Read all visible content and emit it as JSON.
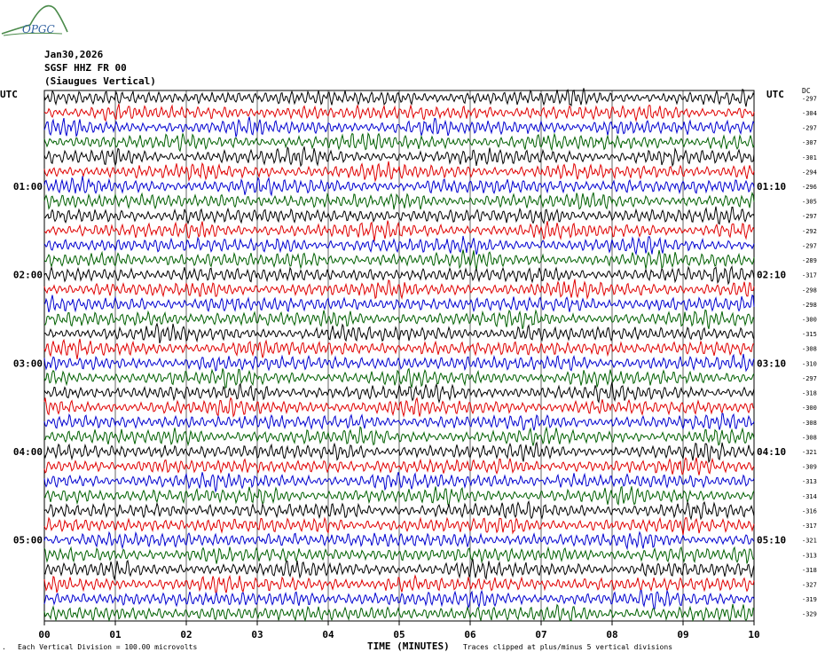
{
  "header": {
    "logo_text": "OPGC",
    "date": "Jan30,2026",
    "station": "SGSF HHZ FR 00",
    "location": "(Siaugues Vertical)",
    "utc_left": "UTC",
    "utc_right": "UTC",
    "dc_label": "DC"
  },
  "footer": {
    "division_note": "Each Vertical Division =  100.00 microvolts",
    "clip_note": "Traces clipped at plus/minus 5 vertical divisions",
    "axis_title": "TIME (MINUTES)"
  },
  "colors": {
    "trace_cycle": [
      "#000000",
      "#e00000",
      "#0000d0",
      "#006000"
    ],
    "grid": "#000000",
    "logo": "#4a8a4a"
  },
  "chart_data": {
    "type": "line",
    "title": "SGSF HHZ FR 00 (Siaugues Vertical)",
    "xlabel": "TIME (MINUTES)",
    "ylabel": "UTC",
    "x_ticks": [
      "00",
      "01",
      "02",
      "03",
      "04",
      "05",
      "06",
      "07",
      "08",
      "09",
      "10"
    ],
    "xlim": [
      0,
      10
    ],
    "minutes_per_row": 10,
    "left_time_labels": [
      {
        "row": 6,
        "label": "01:00"
      },
      {
        "row": 12,
        "label": "02:00"
      },
      {
        "row": 18,
        "label": "03:00"
      },
      {
        "row": 24,
        "label": "04:00"
      },
      {
        "row": 30,
        "label": "05:00"
      }
    ],
    "right_time_labels": [
      {
        "row": 6,
        "label": "01:10"
      },
      {
        "row": 12,
        "label": "02:10"
      },
      {
        "row": 18,
        "label": "03:10"
      },
      {
        "row": 24,
        "label": "04:10"
      },
      {
        "row": 30,
        "label": "05:10"
      }
    ],
    "dc_offsets": [
      -297,
      -304,
      -297,
      -307,
      -301,
      -294,
      -296,
      -305,
      -297,
      -292,
      -297,
      -289,
      -317,
      -298,
      -298,
      -300,
      -315,
      -308,
      -310,
      -297,
      -318,
      -300,
      -308,
      -308,
      -321,
      -309,
      -313,
      -314,
      -316,
      -317,
      -321,
      -313,
      -318,
      -327,
      -319,
      -329
    ],
    "grid": true,
    "vertical_division_microvolts": 100.0,
    "clip_divisions": 5
  }
}
